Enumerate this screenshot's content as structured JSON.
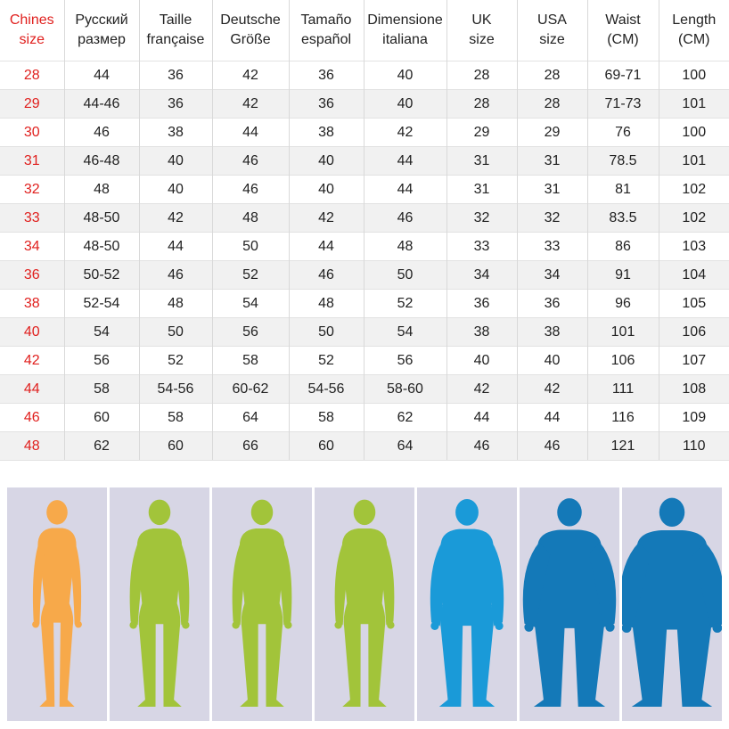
{
  "table": {
    "headers": [
      {
        "line1": "Chines",
        "line2": "size",
        "highlight": true
      },
      {
        "line1": "Русский",
        "line2": "размер",
        "highlight": false
      },
      {
        "line1": "Taille",
        "line2": "française",
        "highlight": false
      },
      {
        "line1": "Deutsche",
        "line2": "Größe",
        "highlight": false
      },
      {
        "line1": "Tamaño",
        "line2": "español",
        "highlight": false
      },
      {
        "line1": "Dimensione",
        "line2": "italiana",
        "highlight": false
      },
      {
        "line1": "UK",
        "line2": "size",
        "highlight": false
      },
      {
        "line1": "USA",
        "line2": "size",
        "highlight": false
      },
      {
        "line1": "Waist",
        "line2": "(CM)",
        "highlight": false
      },
      {
        "line1": "Length",
        "line2": "(CM)",
        "highlight": false
      }
    ],
    "rows": [
      [
        "28",
        "44",
        "36",
        "42",
        "36",
        "40",
        "28",
        "28",
        "69-71",
        "100"
      ],
      [
        "29",
        "44-46",
        "36",
        "42",
        "36",
        "40",
        "28",
        "28",
        "71-73",
        "101"
      ],
      [
        "30",
        "46",
        "38",
        "44",
        "38",
        "42",
        "29",
        "29",
        "76",
        "100"
      ],
      [
        "31",
        "46-48",
        "40",
        "46",
        "40",
        "44",
        "31",
        "31",
        "78.5",
        "101"
      ],
      [
        "32",
        "48",
        "40",
        "46",
        "40",
        "44",
        "31",
        "31",
        "81",
        "102"
      ],
      [
        "33",
        "48-50",
        "42",
        "48",
        "42",
        "46",
        "32",
        "32",
        "83.5",
        "102"
      ],
      [
        "34",
        "48-50",
        "44",
        "50",
        "44",
        "48",
        "33",
        "33",
        "86",
        "103"
      ],
      [
        "36",
        "50-52",
        "46",
        "52",
        "46",
        "50",
        "34",
        "34",
        "91",
        "104"
      ],
      [
        "38",
        "52-54",
        "48",
        "54",
        "48",
        "52",
        "36",
        "36",
        "96",
        "105"
      ],
      [
        "40",
        "54",
        "50",
        "56",
        "50",
        "54",
        "38",
        "38",
        "101",
        "106"
      ],
      [
        "42",
        "56",
        "52",
        "58",
        "52",
        "56",
        "40",
        "40",
        "106",
        "107"
      ],
      [
        "44",
        "58",
        "54-56",
        "60-62",
        "54-56",
        "58-60",
        "42",
        "42",
        "111",
        "108"
      ],
      [
        "46",
        "60",
        "58",
        "64",
        "58",
        "62",
        "44",
        "44",
        "116",
        "109"
      ],
      [
        "48",
        "62",
        "60",
        "66",
        "60",
        "64",
        "46",
        "46",
        "121",
        "110"
      ]
    ]
  },
  "colors": {
    "highlight": "#e0201e",
    "panel_background": "#d7d6e5",
    "figures": [
      "#f7a94a",
      "#a2c43a",
      "#a2c43a",
      "#a2c43a",
      "#1a9ad8",
      "#1479b8",
      "#1479b8"
    ]
  },
  "figures": [
    {
      "icon": "slim-body-figure-icon",
      "build": 0.0
    },
    {
      "icon": "athletic-body-figure-icon",
      "build": 0.2
    },
    {
      "icon": "athletic-body-figure-icon",
      "build": 0.2
    },
    {
      "icon": "athletic-body-figure-icon",
      "build": 0.2
    },
    {
      "icon": "heavy-body-figure-icon",
      "build": 0.45
    },
    {
      "icon": "obese-body-figure-icon",
      "build": 0.8
    },
    {
      "icon": "very-obese-body-figure-icon",
      "build": 1.0
    }
  ]
}
